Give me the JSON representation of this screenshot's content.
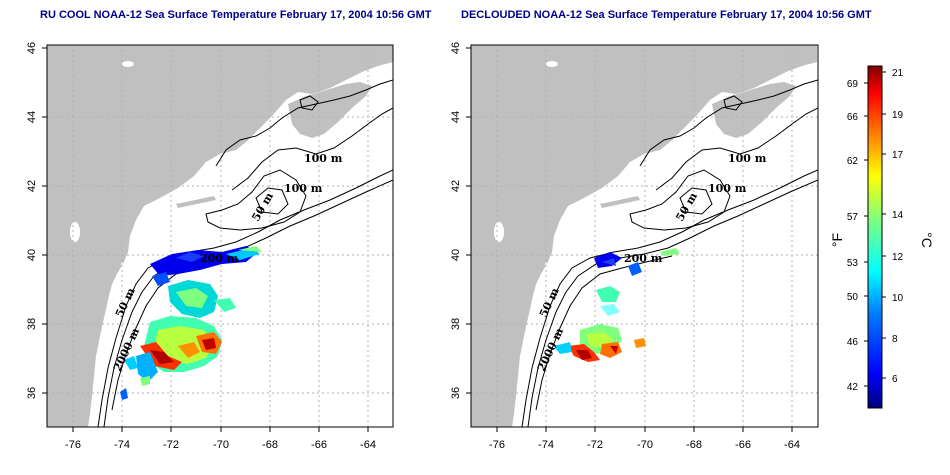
{
  "panels": [
    {
      "title": "RU COOL NOAA-12 Sea Surface Temperature February 17, 2004 10:56 GMT",
      "x_ticks": [
        "-76",
        "-74",
        "-72",
        "-70",
        "-68",
        "-66",
        "-64"
      ],
      "y_ticks": [
        "36",
        "38",
        "40",
        "42",
        "44",
        "46"
      ],
      "contour_labels": [
        "100 m",
        "100 m",
        "50 m",
        "200 m",
        "50 m",
        "2000 m"
      ]
    },
    {
      "title": "DECLOUDED NOAA-12 Sea Surface Temperature February 17, 2004 10:56 GMT",
      "x_ticks": [
        "-76",
        "-74",
        "-72",
        "-70",
        "-68",
        "-66",
        "-64"
      ],
      "y_ticks": [
        "36",
        "38",
        "40",
        "42",
        "44",
        "46"
      ],
      "contour_labels": [
        "100 m",
        "100 m",
        "50 m",
        "200 m",
        "50 m",
        "2000 m"
      ]
    }
  ],
  "colorbar": {
    "fahrenheit_label": "°F",
    "celsius_label": "°C",
    "fahrenheit_ticks": [
      "69",
      "66",
      "62",
      "57",
      "53",
      "50",
      "46",
      "42"
    ],
    "celsius_ticks": [
      "21",
      "19",
      "17",
      "14",
      "12",
      "10",
      "8",
      "6"
    ],
    "gradient_colors": [
      "#00007f",
      "#0000ff",
      "#007fff",
      "#00ffff",
      "#7fff7f",
      "#ffff00",
      "#ff7f00",
      "#ff0000",
      "#7f0000"
    ]
  },
  "colors": {
    "land": "#c0c0c0",
    "ocean": "#ffffff",
    "grid": "#b0b0b0",
    "title": "#00008b"
  }
}
